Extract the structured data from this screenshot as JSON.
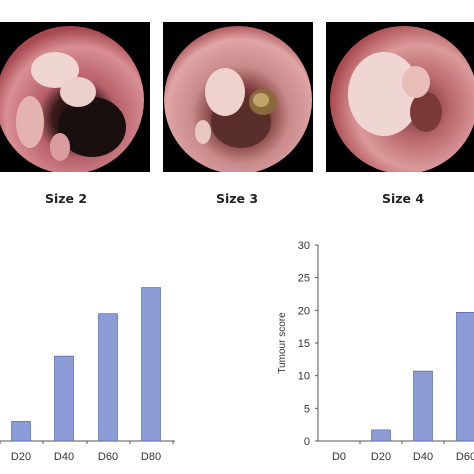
{
  "figure": {
    "panel_labels": [
      "Size 2",
      "Size 3",
      "Size 4"
    ],
    "panel_colors": {
      "mucosa": "#c9707a",
      "mucosa_light": "#e8a3a6",
      "lumen": "#1a0f0f",
      "polyp": "#eed3cf",
      "necrotic": "#8a6a3a"
    }
  },
  "chart_data": [
    {
      "type": "bar",
      "categories": [
        "D20",
        "D40",
        "D60",
        "D80"
      ],
      "values": [
        3,
        13,
        19.5,
        23.5
      ],
      "ylabel": "",
      "bar_color": "#8c9cd6"
    },
    {
      "type": "bar",
      "categories": [
        "D0",
        "D20",
        "D40",
        "D60"
      ],
      "values": [
        0,
        1.7,
        10.7,
        19.7
      ],
      "ylabel": "Tumour score",
      "ylim": [
        0,
        30
      ],
      "yticks": [
        "0",
        "5",
        "10",
        "15",
        "20",
        "25",
        "30"
      ],
      "bar_color": "#8c9cd6"
    }
  ]
}
